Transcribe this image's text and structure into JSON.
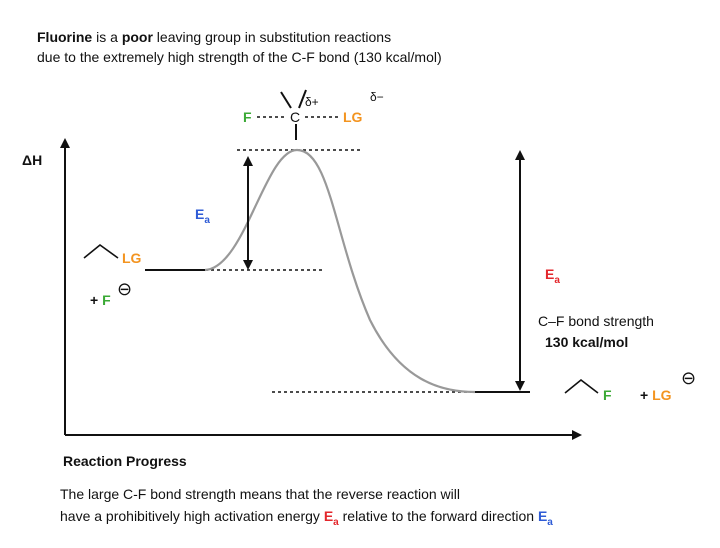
{
  "header": {
    "line1": {
      "bold1": "Fluorine",
      "text1": " is a ",
      "bold2": "poor",
      "text2": " leaving group in substitution reactions"
    },
    "line2": "due to the extremely high strength of the C-F bond (130 kcal/mol)"
  },
  "transition_state": {
    "left": "F",
    "center": "C",
    "delta_plus": "δ+",
    "right": "LG",
    "delta_minus": "δ−"
  },
  "axes": {
    "y_label": "ΔH",
    "x_label": "Reaction Progress"
  },
  "forward_barrier": {
    "symbol": "E",
    "subscript": "a"
  },
  "reverse_barrier": {
    "symbol": "E",
    "subscript": "a",
    "note_line1": "C–F bond strength",
    "note_line2": "130 kcal/mol"
  },
  "reactants": {
    "leaving_group": "LG",
    "nucleophile_sign": "+ ",
    "nucleophile": "F",
    "charge": "⊖"
  },
  "products": {
    "fluoride": "F",
    "leaving_group_sign": "+ ",
    "leaving_group": "LG",
    "charge": "⊖"
  },
  "footer": {
    "line1": "The large C-F bond strength means that the reverse reaction will",
    "line2": {
      "text1": "have a prohibitively high activation energy ",
      "symbol1": "E",
      "sub1": "a",
      "text2": " relative to the forward direction ",
      "symbol2": "E",
      "sub2": "a"
    }
  }
}
